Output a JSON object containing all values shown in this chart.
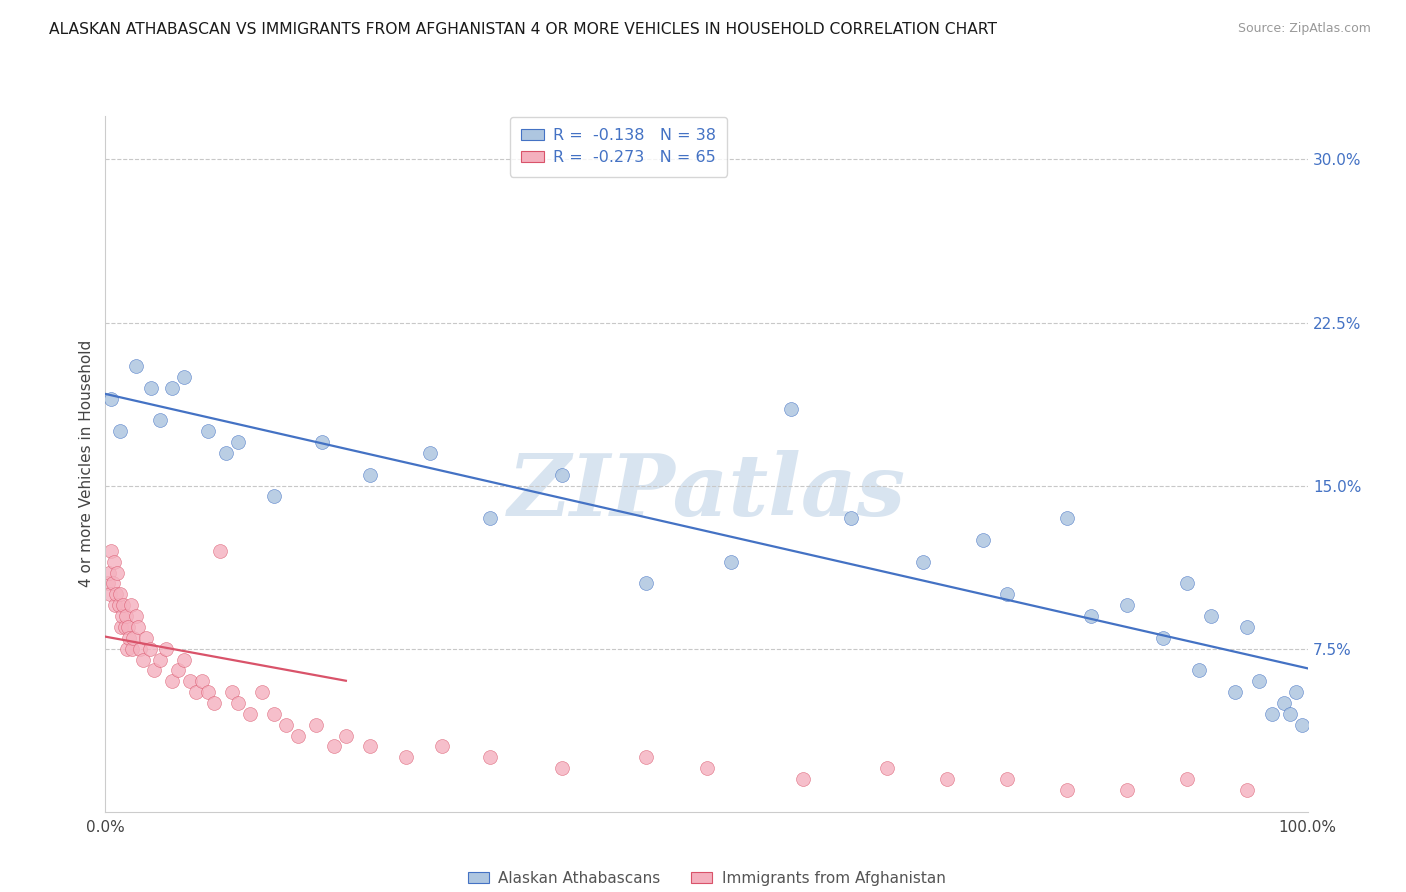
{
  "title": "ALASKAN ATHABASCAN VS IMMIGRANTS FROM AFGHANISTAN 4 OR MORE VEHICLES IN HOUSEHOLD CORRELATION CHART",
  "source": "Source: ZipAtlas.com",
  "ylabel": "4 or more Vehicles in Household",
  "legend_label1": "Alaskan Athabascans",
  "legend_label2": "Immigrants from Afghanistan",
  "R1": -0.138,
  "N1": 38,
  "R2": -0.273,
  "N2": 65,
  "color1": "#aec6e0",
  "color2": "#f4b0be",
  "trendline1_color": "#4472c4",
  "trendline2_color": "#d9536a",
  "xlim": [
    0,
    100
  ],
  "ylim": [
    0,
    32
  ],
  "yticks": [
    0,
    7.5,
    15.0,
    22.5,
    30.0
  ],
  "blue_x": [
    0.5,
    1.2,
    2.5,
    3.8,
    4.5,
    5.5,
    6.5,
    8.5,
    10.0,
    11.0,
    14.0,
    18.0,
    22.0,
    27.0,
    32.0,
    38.0,
    45.0,
    52.0,
    57.0,
    62.0,
    68.0,
    73.0,
    75.0,
    80.0,
    82.0,
    85.0,
    88.0,
    90.0,
    91.0,
    92.0,
    94.0,
    95.0,
    96.0,
    97.0,
    98.0,
    98.5,
    99.0,
    99.5
  ],
  "blue_y": [
    19.0,
    17.5,
    20.5,
    19.5,
    18.0,
    19.5,
    20.0,
    17.5,
    16.5,
    17.0,
    14.5,
    17.0,
    15.5,
    16.5,
    13.5,
    15.5,
    10.5,
    11.5,
    18.5,
    13.5,
    11.5,
    12.5,
    10.0,
    13.5,
    9.0,
    9.5,
    8.0,
    10.5,
    6.5,
    9.0,
    5.5,
    8.5,
    6.0,
    4.5,
    5.0,
    4.5,
    5.5,
    4.0
  ],
  "pink_x": [
    0.2,
    0.3,
    0.4,
    0.5,
    0.6,
    0.7,
    0.8,
    0.9,
    1.0,
    1.1,
    1.2,
    1.3,
    1.4,
    1.5,
    1.6,
    1.7,
    1.8,
    1.9,
    2.0,
    2.1,
    2.2,
    2.3,
    2.5,
    2.7,
    2.9,
    3.1,
    3.4,
    3.7,
    4.0,
    4.5,
    5.0,
    5.5,
    6.0,
    6.5,
    7.0,
    7.5,
    8.0,
    8.5,
    9.0,
    9.5,
    10.5,
    11.0,
    12.0,
    13.0,
    14.0,
    15.0,
    16.0,
    17.5,
    19.0,
    20.0,
    22.0,
    25.0,
    28.0,
    32.0,
    38.0,
    45.0,
    50.0,
    58.0,
    65.0,
    70.0,
    75.0,
    80.0,
    85.0,
    90.0,
    95.0
  ],
  "pink_y": [
    10.5,
    11.0,
    10.0,
    12.0,
    10.5,
    11.5,
    9.5,
    10.0,
    11.0,
    9.5,
    10.0,
    8.5,
    9.0,
    9.5,
    8.5,
    9.0,
    7.5,
    8.5,
    8.0,
    9.5,
    7.5,
    8.0,
    9.0,
    8.5,
    7.5,
    7.0,
    8.0,
    7.5,
    6.5,
    7.0,
    7.5,
    6.0,
    6.5,
    7.0,
    6.0,
    5.5,
    6.0,
    5.5,
    5.0,
    12.0,
    5.5,
    5.0,
    4.5,
    5.5,
    4.5,
    4.0,
    3.5,
    4.0,
    3.0,
    3.5,
    3.0,
    2.5,
    3.0,
    2.5,
    2.0,
    2.5,
    2.0,
    1.5,
    2.0,
    1.5,
    1.5,
    1.0,
    1.0,
    1.5,
    1.0
  ],
  "watermark_text": "ZIPatlas",
  "background_color": "#ffffff",
  "grid_color": "#c8c8c8"
}
